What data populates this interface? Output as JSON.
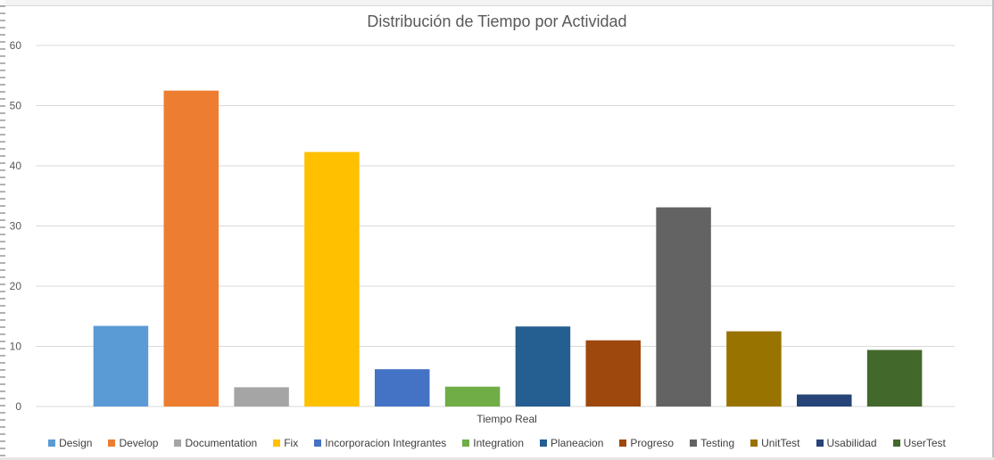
{
  "chart_data": {
    "type": "bar",
    "title": "Distribución de Tiempo por Actividad",
    "xlabel": "Tiempo Real",
    "ylabel": "",
    "ylim": [
      0,
      60
    ],
    "yticks": [
      0,
      10,
      20,
      30,
      40,
      50,
      60
    ],
    "grid": true,
    "legend_position": "bottom",
    "series": [
      {
        "name": "Design",
        "value": 13.4,
        "color": "#5B9BD5"
      },
      {
        "name": "Develop",
        "value": 52.5,
        "color": "#ED7D31"
      },
      {
        "name": "Documentation",
        "value": 3.2,
        "color": "#A5A5A5"
      },
      {
        "name": "Fix",
        "value": 42.3,
        "color": "#FFC000"
      },
      {
        "name": "Incorporacion Integrantes",
        "value": 6.2,
        "color": "#4472C4"
      },
      {
        "name": "Integration",
        "value": 3.3,
        "color": "#70AD47"
      },
      {
        "name": "Planeacion",
        "value": 13.3,
        "color": "#255E91"
      },
      {
        "name": "Progreso",
        "value": 11.0,
        "color": "#9E480E"
      },
      {
        "name": "Testing",
        "value": 33.1,
        "color": "#636363"
      },
      {
        "name": "UnitTest",
        "value": 12.5,
        "color": "#997300"
      },
      {
        "name": "Usabilidad",
        "value": 2.0,
        "color": "#264478"
      },
      {
        "name": "UserTest",
        "value": 9.4,
        "color": "#43682B"
      }
    ],
    "gridline_color": "#d9d9d9",
    "text_color": "#595959"
  }
}
